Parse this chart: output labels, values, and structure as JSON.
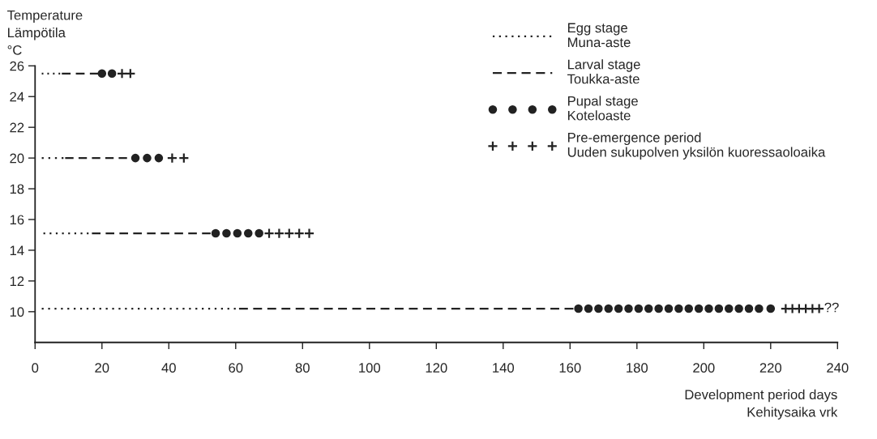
{
  "chart_data": {
    "type": "line",
    "ylabel": "Temperature\nLämpötila\n°C",
    "xlabel": "Development period days\nKehitysaika vrk",
    "xlim": [
      0,
      240
    ],
    "xticks": [
      0,
      20,
      40,
      60,
      80,
      100,
      120,
      140,
      160,
      180,
      200,
      220,
      240
    ],
    "ylim": [
      8,
      26
    ],
    "yticks": [
      10,
      12,
      14,
      16,
      18,
      20,
      22,
      24,
      26
    ],
    "grid": false,
    "legend": "top right",
    "series": [
      {
        "name": "Egg stage\nMuna-aste",
        "color": "#222222",
        "line_style": "dotted",
        "x": [
          2,
          7.5,
          null,
          2,
          8.5,
          null,
          2.5,
          16,
          null,
          2,
          60
        ],
        "values": [
          25.5,
          25.5,
          null,
          20,
          20,
          null,
          15.1,
          15.1,
          null,
          10.2,
          10.2
        ]
      },
      {
        "name": "Larval stage\nToukka-aste",
        "color": "#222222",
        "line_style": "dashed",
        "x": [
          8,
          19,
          null,
          9,
          27.5,
          null,
          17,
          52.5,
          null,
          61,
          161
        ],
        "values": [
          25.5,
          25.5,
          null,
          20,
          20,
          null,
          15.1,
          15.1,
          null,
          10.2,
          10.2
        ]
      },
      {
        "name": "Pupal stage\nKoteloaste",
        "type": "scatter",
        "color": "#222222",
        "marker": "circle",
        "x": [
          20,
          23,
          30,
          33.5,
          37,
          54,
          57.25,
          60.5,
          63.75,
          67,
          162.5,
          165.5,
          168.5,
          171.5,
          174.5,
          177.5,
          180.5,
          183.5,
          186.5,
          189.5,
          192.5,
          195.5,
          198.5,
          201.5,
          204.5,
          207.5,
          210.5,
          213.5,
          216.5,
          220
        ],
        "values": [
          25.5,
          25.5,
          20,
          20,
          20,
          15.1,
          15.1,
          15.1,
          15.1,
          15.1,
          10.2,
          10.2,
          10.2,
          10.2,
          10.2,
          10.2,
          10.2,
          10.2,
          10.2,
          10.2,
          10.2,
          10.2,
          10.2,
          10.2,
          10.2,
          10.2,
          10.2,
          10.2,
          10.2,
          10.2
        ]
      },
      {
        "name": "Pre-emergence period\nUuden sukupolven yksilön kuoressaoloaika",
        "type": "scatter",
        "color": "#222222",
        "marker": "cross",
        "x": [
          26,
          28.5,
          41,
          44.5,
          70,
          73,
          76,
          79,
          82,
          224.5,
          226.5,
          228.5,
          230.5,
          232.5,
          234.5
        ],
        "values": [
          25.5,
          25.5,
          20,
          20,
          15.1,
          15.1,
          15.1,
          15.1,
          15.1,
          10.2,
          10.2,
          10.2,
          10.2,
          10.2,
          10.2
        ]
      }
    ],
    "annotations": [
      {
        "text": "??",
        "x": 236,
        "y": 10.2
      }
    ]
  }
}
